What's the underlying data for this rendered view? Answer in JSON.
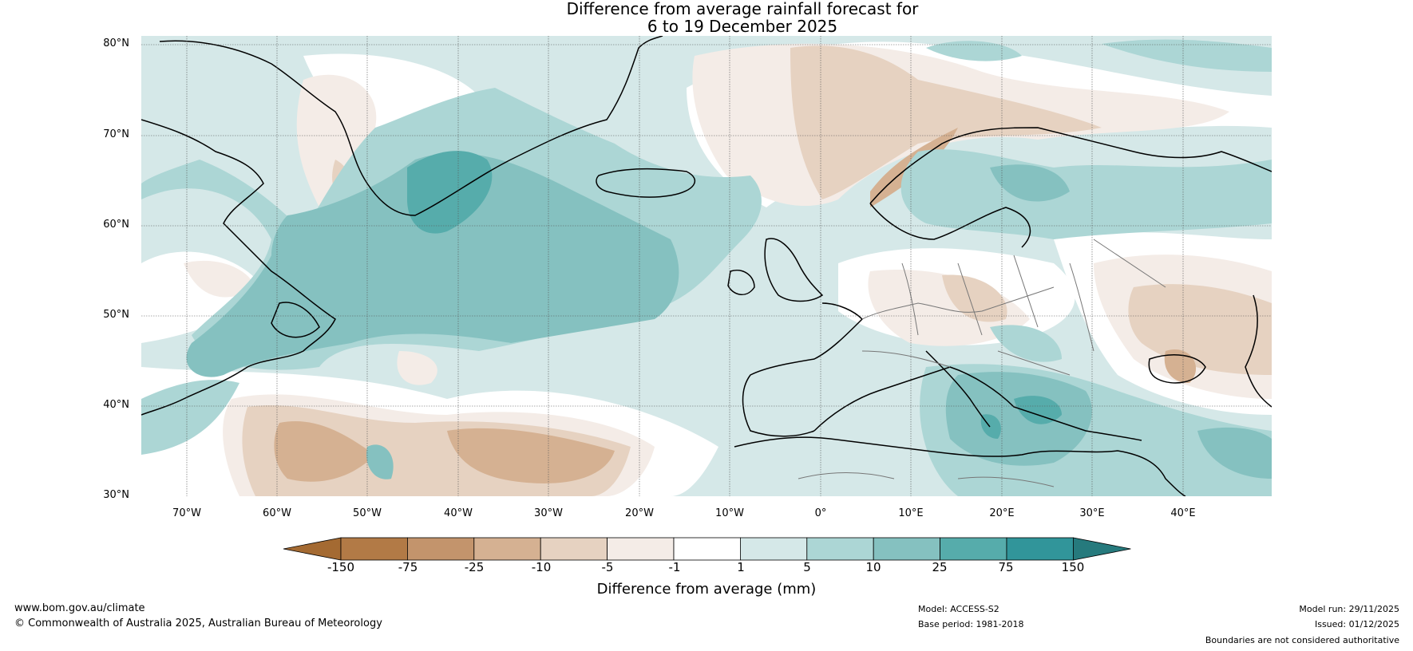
{
  "title": {
    "line1": "Difference from average rainfall forecast for",
    "line2": "6 to 19 December 2025"
  },
  "latitude_labels": [
    "80°N",
    "70°N",
    "60°N",
    "50°N",
    "40°N",
    "30°N"
  ],
  "longitude_labels": [
    "70°W",
    "60°W",
    "50°W",
    "40°W",
    "30°W",
    "20°W",
    "10°W",
    "0°",
    "10°E",
    "20°E",
    "30°E",
    "40°E"
  ],
  "colorbar": {
    "label": "Difference from average (mm)",
    "ticks": [
      "-150",
      "-75",
      "-25",
      "-10",
      "-5",
      "-1",
      "1",
      "5",
      "10",
      "25",
      "75",
      "150"
    ],
    "colors": [
      "#a46a32",
      "#b27a46",
      "#c3946c",
      "#d5b192",
      "#e6d2c1",
      "#f4ece7",
      "#ffffff",
      "#d5e8e8",
      "#acd6d5",
      "#85c1c0",
      "#56acab",
      "#31959a",
      "#267a7d"
    ]
  },
  "map_colors": {
    "dry_light": "#f4ece7",
    "dry_mid": "#e6d2c1",
    "dry_strong": "#d5b192",
    "dry_stronger": "#c3946c",
    "wet_light": "#d5e8e8",
    "wet_mid": "#acd6d5",
    "wet_strong": "#85c1c0",
    "wet_stronger": "#56acab",
    "coast": "#000000",
    "border": "#777777"
  },
  "footer": {
    "website": "www.bom.gov.au/climate",
    "copyright": "© Commonwealth of Australia 2025, Australian Bureau of Meteorology",
    "model": "Model: ACCESS-S2",
    "base_period": "Base period: 1981-2018",
    "model_run": "Model run: 29/11/2025",
    "issued": "Issued: 01/12/2025",
    "disclaimer": "Boundaries are not considered authoritative"
  }
}
